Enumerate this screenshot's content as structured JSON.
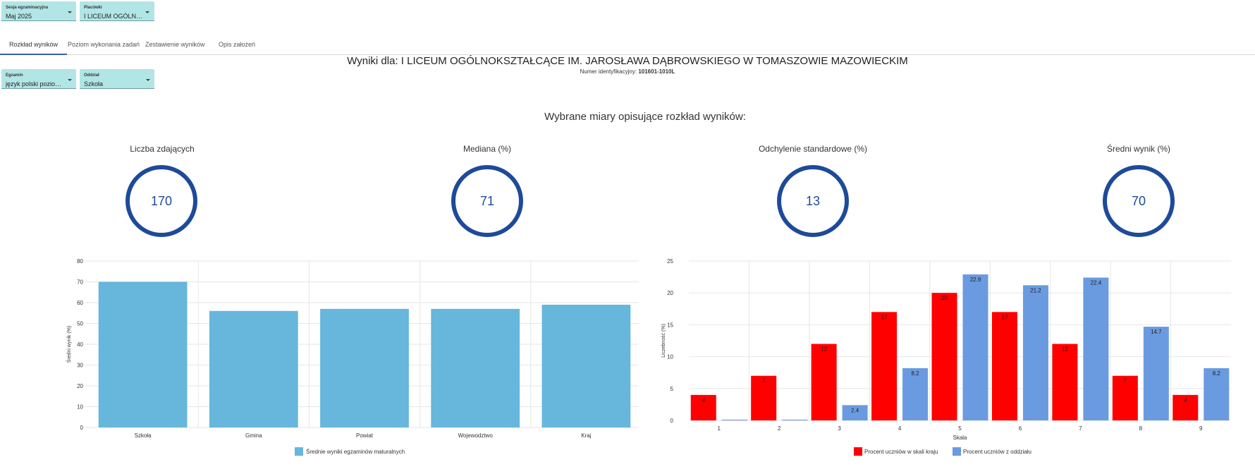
{
  "filters": {
    "session": {
      "label": "Sesja egzaminacyjna",
      "value": "Maj 2025"
    },
    "school": {
      "label": "Placówki",
      "value": "I LICEUM OGÓLNOKSZT..."
    },
    "exam": {
      "label": "Egzamin",
      "value": "język polski poziom pod..."
    },
    "class": {
      "label": "Oddział",
      "value": "Szkoła"
    }
  },
  "tabs": [
    {
      "label": "Rozkład wyników",
      "active": true
    },
    {
      "label": "Poziom wykonania zadań"
    },
    {
      "label": "Zestawienie wyników"
    },
    {
      "label": "Opis założeń"
    }
  ],
  "header": {
    "title": "Wyniki dla: I LICEUM OGÓLNOKSZTAŁCĄCE IM. JAROSŁAWA DĄBROWSKIEGO W TOMASZOWIE MAZOWIECKIM",
    "id_label": "Numer identyfikacyjny:",
    "id_value": "101601-1010L"
  },
  "section_title": "Wybrane miary opisujące rozkład wyników:",
  "metrics": [
    {
      "label": "Liczba zdających",
      "value": "170"
    },
    {
      "label": "Mediana (%)",
      "value": "71"
    },
    {
      "label": "Odchylenie standardowe (%)",
      "value": "13"
    },
    {
      "label": "Średni wynik (%)",
      "value": "70"
    }
  ],
  "colors": {
    "accent": "#1e4a9a",
    "filter_bg": "#b2e5e5",
    "bar_mean": "#67b6dc",
    "bar_country": "#ff0000",
    "bar_class": "#6a9be0"
  },
  "chart_data": [
    {
      "type": "bar",
      "categories": [
        "Szkoła",
        "Gmina",
        "Powiat",
        "Wojewodztwo",
        "Kraj"
      ],
      "values": [
        70,
        56,
        57,
        57,
        59
      ],
      "ylabel": "Średni wynik (%)",
      "xlabel": "",
      "ylim": [
        0,
        80
      ],
      "yticks": [
        0,
        10,
        20,
        30,
        40,
        50,
        60,
        70,
        80
      ],
      "legend": {
        "position": "bottom",
        "entries": [
          "Średnie wyniki egzaminów maturalnych"
        ]
      },
      "grid": true
    },
    {
      "type": "bar",
      "categories": [
        "1",
        "2",
        "3",
        "4",
        "5",
        "6",
        "7",
        "8",
        "9"
      ],
      "xlabel": "Skala",
      "ylabel": "Liczebność (%)",
      "ylim": [
        0,
        25
      ],
      "yticks": [
        0,
        5,
        10,
        15,
        20,
        25
      ],
      "series": [
        {
          "name": "Procent uczniów w skali kraju",
          "values": [
            4,
            7,
            12,
            17,
            20,
            17,
            12,
            7,
            4
          ]
        },
        {
          "name": "Procent uczniów z oddziału",
          "values": [
            0,
            0,
            2.4,
            8.2,
            22.9,
            21.2,
            22.4,
            14.7,
            8.2
          ]
        }
      ],
      "labels": [
        [
          "4",
          "7",
          "12",
          "17",
          "20",
          "17",
          "12",
          "7",
          "4"
        ],
        [
          "",
          "",
          "2.4",
          "8.2",
          "22.9",
          "21.2",
          "22.4",
          "14.7",
          "8.2"
        ]
      ],
      "legend": {
        "position": "bottom"
      },
      "grid": true
    }
  ]
}
